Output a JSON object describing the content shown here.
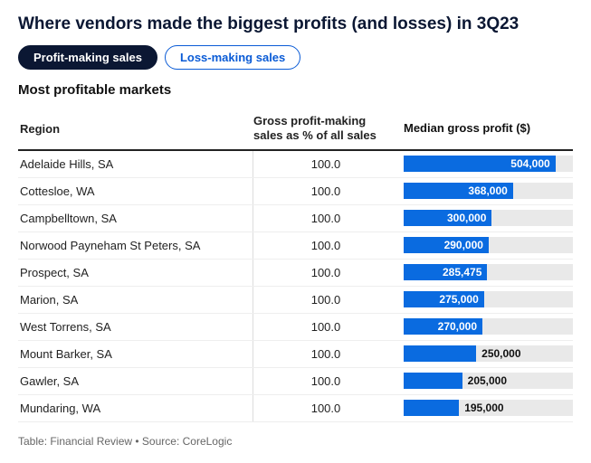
{
  "title": "Where vendors made the biggest profits (and losses) in 3Q23",
  "tabs": {
    "active": "Profit-making sales",
    "inactive": "Loss-making sales"
  },
  "subtitle": "Most profitable markets",
  "columns": {
    "region": "Region",
    "pct": "Gross profit-making sales as % of all sales",
    "profit": "Median gross profit ($)"
  },
  "chart": {
    "type": "bar",
    "xmax": 560000,
    "bar_fill_color": "#0a6be0",
    "bar_track_color": "#e9e9e9",
    "border_color": "#dddddd",
    "row_border_color": "#eeeeee",
    "label_inside_threshold": 0.45
  },
  "rows": [
    {
      "region": "Adelaide Hills, SA",
      "pct": "100.0",
      "value": 504000,
      "label": "504,000"
    },
    {
      "region": "Cottesloe, WA",
      "pct": "100.0",
      "value": 368000,
      "label": "368,000"
    },
    {
      "region": "Campbelltown, SA",
      "pct": "100.0",
      "value": 300000,
      "label": "300,000"
    },
    {
      "region": "Norwood Payneham St Peters, SA",
      "pct": "100.0",
      "value": 290000,
      "label": "290,000"
    },
    {
      "region": "Prospect, SA",
      "pct": "100.0",
      "value": 285475,
      "label": "285,475"
    },
    {
      "region": "Marion, SA",
      "pct": "100.0",
      "value": 275000,
      "label": "275,000"
    },
    {
      "region": "West Torrens, SA",
      "pct": "100.0",
      "value": 270000,
      "label": "270,000"
    },
    {
      "region": "Mount Barker, SA",
      "pct": "100.0",
      "value": 250000,
      "label": "250,000"
    },
    {
      "region": "Gawler, SA",
      "pct": "100.0",
      "value": 205000,
      "label": "205,000"
    },
    {
      "region": "Mundaring, WA",
      "pct": "100.0",
      "value": 195000,
      "label": "195,000"
    }
  ],
  "footer": "Table: Financial Review • Source: CoreLogic",
  "colors": {
    "title": "#0b1733",
    "tab_active_bg": "#0b1733",
    "tab_active_text": "#ffffff",
    "tab_inactive_border": "#0a5bd6",
    "tab_inactive_text": "#0a5bd6",
    "footer_text": "#666666"
  }
}
